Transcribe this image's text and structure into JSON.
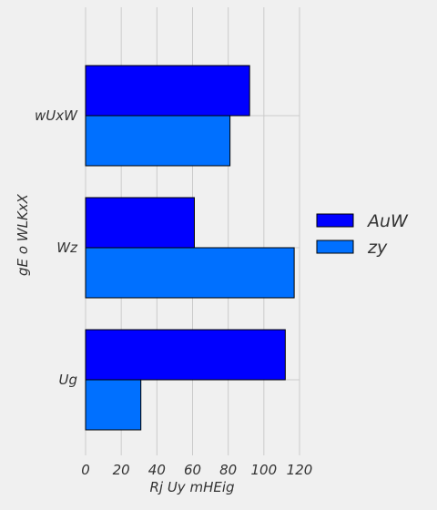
{
  "chart_data": {
    "type": "bar",
    "orientation": "horizontal",
    "categories": [
      "wUxW",
      "Wz",
      "Ug"
    ],
    "series": [
      {
        "name": "AuW",
        "values": [
          92,
          61,
          112
        ],
        "color": "#0000ff"
      },
      {
        "name": "zy",
        "values": [
          81,
          117,
          31
        ],
        "color": "#0070ff"
      }
    ],
    "xlabel": "Rj Uy mHEig",
    "ylabel": "gE o WLKxX",
    "xlim": [
      0,
      120
    ],
    "xticks": [
      "0",
      "20",
      "40",
      "60",
      "80",
      "100",
      "120"
    ],
    "grid": true,
    "legend": "right"
  }
}
